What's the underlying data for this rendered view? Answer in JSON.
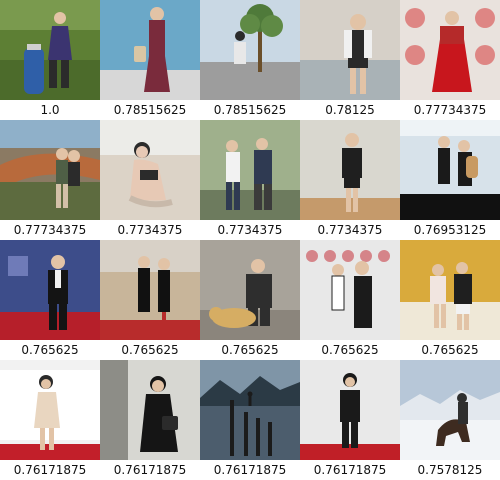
{
  "results": [
    {
      "score": "1.0",
      "palette": {
        "bg": "#7a9a4e",
        "fg": "#3b3470",
        "acc": "#2f5fa8"
      }
    },
    {
      "score": "0.78515625",
      "palette": {
        "bg": "#6ba8c8",
        "fg": "#7a2b3c",
        "acc": "#d9c6a4"
      }
    },
    {
      "score": "0.78515625",
      "palette": {
        "bg": "#c9d8e4",
        "fg": "#e8e8e8",
        "acc": "#4f7a3a"
      }
    },
    {
      "score": "0.78125",
      "palette": {
        "bg": "#d6d0c8",
        "fg": "#2a2a2a",
        "acc": "#f0f0f0"
      }
    },
    {
      "score": "0.77734375",
      "palette": {
        "bg": "#e9e2dd",
        "fg": "#c8161d",
        "acc": "#b52a2a"
      }
    },
    {
      "score": "0.77734375",
      "palette": {
        "bg": "#8fb0c9",
        "fg": "#5d6b3f",
        "acc": "#b86a3c"
      }
    },
    {
      "score": "0.7734375",
      "palette": {
        "bg": "#dcd3c7",
        "fg": "#e7c9b5",
        "acc": "#2b2b2b"
      }
    },
    {
      "score": "0.7734375",
      "palette": {
        "bg": "#9fb08c",
        "fg": "#f2f2f2",
        "acc": "#2f3a52"
      }
    },
    {
      "score": "0.7734375",
      "palette": {
        "bg": "#d9d7cf",
        "fg": "#1f1f1f",
        "acc": "#c59a6b"
      }
    },
    {
      "score": "0.76953125",
      "palette": {
        "bg": "#d7e2ea",
        "fg": "#1a1a1a",
        "acc": "#c89a62"
      }
    },
    {
      "score": "0.765625",
      "palette": {
        "bg": "#3d4d8a",
        "fg": "#141414",
        "acc": "#b61f2a"
      }
    },
    {
      "score": "0.765625",
      "palette": {
        "bg": "#c8b59a",
        "fg": "#111111",
        "acc": "#b82c2c"
      }
    },
    {
      "score": "0.765625",
      "palette": {
        "bg": "#a8a39a",
        "fg": "#2e2e2e",
        "acc": "#d6ad63"
      }
    },
    {
      "score": "0.765625",
      "palette": {
        "bg": "#e8e8e8",
        "fg": "#1b1b1b",
        "acc": "#c21f2a"
      }
    },
    {
      "score": "0.765625",
      "palette": {
        "bg": "#d9aa3c",
        "fg": "#f1e5e0",
        "acc": "#1f1f1f"
      }
    },
    {
      "score": "0.76171875",
      "palette": {
        "bg": "#f2f2f2",
        "fg": "#e9d6c0",
        "acc": "#c21f2a"
      }
    },
    {
      "score": "0.76171875",
      "palette": {
        "bg": "#d7d7d2",
        "fg": "#151515",
        "acc": "#8d8d87"
      }
    },
    {
      "score": "0.76171875",
      "palette": {
        "bg": "#7f95a7",
        "fg": "#2b3a45",
        "acc": "#4c5d6d"
      }
    },
    {
      "score": "0.76171875",
      "palette": {
        "bg": "#e9e9e9",
        "fg": "#1a1a1a",
        "acc": "#c01f27"
      }
    },
    {
      "score": "0.7578125",
      "palette": {
        "bg": "#b7c7d8",
        "fg": "#3e2b20",
        "acc": "#f2f4f7"
      }
    }
  ]
}
